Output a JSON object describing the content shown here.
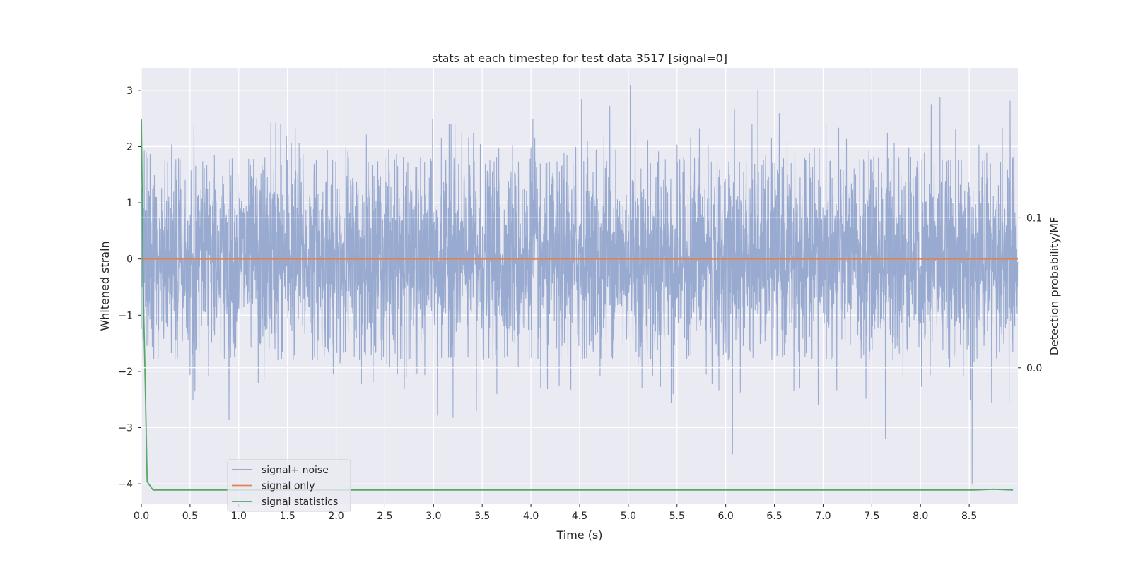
{
  "chart_data": {
    "type": "line",
    "title": "stats at each timestep for test data 3517 [signal=0]",
    "xlabel": "Time (s)",
    "ylabel": "Whitened strain",
    "ylabel_right": "Detection probability/MF",
    "xlim": [
      0.0,
      9.0
    ],
    "ylim": [
      -4.35,
      3.4
    ],
    "ylim_right": [
      -0.0905,
      0.2
    ],
    "x_ticks": [
      "0.0",
      "0.5",
      "1.0",
      "1.5",
      "2.0",
      "2.5",
      "3.0",
      "3.5",
      "4.0",
      "4.5",
      "5.0",
      "5.5",
      "6.0",
      "6.5",
      "7.0",
      "7.5",
      "8.0",
      "8.5"
    ],
    "y_ticks": [
      "3",
      "2",
      "1",
      "0",
      "−1",
      "−2",
      "−3",
      "−4"
    ],
    "y_ticks_right": [
      "0.1",
      "0.0"
    ],
    "grid": true,
    "legend_position": "lower-left",
    "colors": {
      "signal_noise": "#8da0cb",
      "signal_only": "#dd8452",
      "signal_statistics": "#55a868",
      "plot_bg": "#eaeaf2",
      "grid": "#ffffff"
    },
    "series": [
      {
        "name": "signal+ noise",
        "axis": "left",
        "kind": "noise",
        "sample_rate": 500,
        "duration": 9.0,
        "std": 0.82,
        "peaks": [
          [
            0.03,
            1.92
          ],
          [
            0.05,
            1.89
          ],
          [
            0.07,
            -1.55
          ],
          [
            0.09,
            1.86
          ],
          [
            0.27,
            1.73
          ],
          [
            0.31,
            2.03
          ],
          [
            0.37,
            -1.74
          ],
          [
            0.45,
            1.4
          ],
          [
            0.5,
            -2.06
          ],
          [
            0.51,
            1.57
          ],
          [
            0.53,
            -2.51
          ],
          [
            0.54,
            2.37
          ],
          [
            0.55,
            -2.35
          ],
          [
            0.63,
            1.73
          ],
          [
            0.69,
            -2.08
          ],
          [
            0.75,
            1.85
          ],
          [
            0.89,
            -1.59
          ],
          [
            0.9,
            -2.85
          ],
          [
            0.92,
            1.48
          ],
          [
            0.95,
            -1.5
          ],
          [
            1.2,
            -2.2
          ],
          [
            1.24,
            1.66
          ],
          [
            1.26,
            -2.13
          ],
          [
            1.33,
            2.42
          ],
          [
            1.38,
            2.42
          ],
          [
            1.43,
            2.4
          ],
          [
            1.49,
            2.19
          ],
          [
            1.54,
            2.06
          ],
          [
            1.58,
            2.33
          ],
          [
            1.62,
            2.06
          ],
          [
            1.66,
            1.86
          ],
          [
            1.91,
            1.93
          ],
          [
            1.92,
            -1.66
          ],
          [
            1.97,
            -2.05
          ],
          [
            2.04,
            -1.85
          ],
          [
            2.1,
            1.99
          ],
          [
            2.12,
            1.91
          ],
          [
            2.21,
            1.37
          ],
          [
            2.26,
            -2.22
          ],
          [
            2.29,
            -1.66
          ],
          [
            2.31,
            2.21
          ],
          [
            2.37,
            1.67
          ],
          [
            2.38,
            -2.19
          ],
          [
            2.44,
            1.29
          ],
          [
            2.52,
            -1.86
          ],
          [
            2.54,
            1.94
          ],
          [
            2.55,
            -1.93
          ],
          [
            2.62,
            1.86
          ],
          [
            2.63,
            -2.05
          ],
          [
            2.69,
            1.81
          ],
          [
            2.7,
            -2.31
          ],
          [
            2.72,
            -2.1
          ],
          [
            2.82,
            -2.1
          ],
          [
            2.83,
            -2.03
          ],
          [
            2.91,
            -2.06
          ],
          [
            2.99,
            2.49
          ],
          [
            3.04,
            -2.78
          ],
          [
            3.08,
            2.15
          ],
          [
            3.16,
            2.4
          ],
          [
            3.18,
            2.39
          ],
          [
            3.2,
            -2.82
          ],
          [
            3.22,
            2.4
          ],
          [
            3.29,
            2.25
          ],
          [
            3.36,
            2.16
          ],
          [
            3.41,
            2.24
          ],
          [
            3.44,
            -2.7
          ],
          [
            3.48,
            2.04
          ],
          [
            3.58,
            1.43
          ],
          [
            3.65,
            -2.4
          ],
          [
            3.67,
            1.96
          ],
          [
            3.73,
            -1.75
          ],
          [
            3.77,
            1.38
          ],
          [
            3.81,
            2.01
          ],
          [
            3.87,
            -1.91
          ],
          [
            4.0,
            1.98
          ],
          [
            4.02,
            2.49
          ],
          [
            4.04,
            2.15
          ],
          [
            4.1,
            -2.29
          ],
          [
            4.17,
            -2.31
          ],
          [
            4.29,
            -2.25
          ],
          [
            4.34,
            1.88
          ],
          [
            4.37,
            1.85
          ],
          [
            4.41,
            -2.32
          ],
          [
            4.46,
            1.99
          ],
          [
            4.52,
            2.84
          ],
          [
            4.58,
            2.09
          ],
          [
            4.67,
            1.94
          ],
          [
            4.71,
            -2.08
          ],
          [
            4.75,
            2.21
          ],
          [
            4.81,
            2.72
          ],
          [
            4.87,
            1.94
          ],
          [
            5.02,
            3.08
          ],
          [
            5.07,
            2.32
          ],
          [
            5.1,
            -1.87
          ],
          [
            5.14,
            -2.29
          ],
          [
            5.2,
            2.11
          ],
          [
            5.25,
            -2.07
          ],
          [
            5.31,
            1.91
          ],
          [
            5.33,
            -2.27
          ],
          [
            5.38,
            1.77
          ],
          [
            5.44,
            -2.56
          ],
          [
            5.46,
            -2.4
          ],
          [
            5.5,
            2.03
          ],
          [
            5.56,
            1.54
          ],
          [
            5.64,
            2.16
          ],
          [
            5.68,
            1.79
          ],
          [
            5.73,
            2.32
          ],
          [
            5.8,
            -2.05
          ],
          [
            5.82,
            2.01
          ],
          [
            5.86,
            -2.22
          ],
          [
            5.93,
            -2.33
          ],
          [
            6.07,
            -3.47
          ],
          [
            6.09,
            2.65
          ],
          [
            6.15,
            -2.37
          ],
          [
            6.21,
            1.72
          ],
          [
            6.27,
            2.39
          ],
          [
            6.33,
            3.01
          ],
          [
            6.41,
            1.85
          ],
          [
            6.47,
            2.14
          ],
          [
            6.55,
            2.59
          ],
          [
            6.63,
            2.11
          ],
          [
            6.7,
            -2.34
          ],
          [
            6.71,
            1.89
          ],
          [
            6.76,
            -2.3
          ],
          [
            6.82,
            1.76
          ],
          [
            6.86,
            1.88
          ],
          [
            6.91,
            1.97
          ],
          [
            6.95,
            -2.59
          ],
          [
            6.96,
            1.98
          ],
          [
            7.03,
            2.39
          ],
          [
            7.07,
            1.74
          ],
          [
            7.14,
            -2.33
          ],
          [
            7.16,
            2.33
          ],
          [
            7.24,
            2.13
          ],
          [
            7.29,
            1.34
          ],
          [
            7.39,
            -1.76
          ],
          [
            7.44,
            -2.48
          ],
          [
            7.47,
            1.92
          ],
          [
            7.52,
            1.82
          ],
          [
            7.6,
            1.53
          ],
          [
            7.64,
            -3.2
          ],
          [
            7.66,
            2.24
          ],
          [
            7.73,
            2.06
          ],
          [
            7.8,
            1.49
          ],
          [
            7.82,
            -2.09
          ],
          [
            7.88,
            1.98
          ],
          [
            7.9,
            1.81
          ],
          [
            7.96,
            1.62
          ],
          [
            8.01,
            -2.27
          ],
          [
            8.04,
            1.89
          ],
          [
            8.1,
            -2.06
          ],
          [
            8.11,
            2.75
          ],
          [
            8.14,
            1.69
          ],
          [
            8.2,
            2.87
          ],
          [
            8.3,
            -1.93
          ],
          [
            8.36,
            2.3
          ],
          [
            8.44,
            -2.09
          ],
          [
            8.51,
            -2.5
          ],
          [
            8.53,
            -4.0
          ],
          [
            8.55,
            -1.82
          ],
          [
            8.6,
            2.03
          ],
          [
            8.68,
            1.89
          ],
          [
            8.73,
            -2.55
          ],
          [
            8.78,
            -1.73
          ],
          [
            8.84,
            2.33
          ],
          [
            8.91,
            -2.56
          ],
          [
            8.92,
            2.81
          ],
          [
            8.94,
            -1.46
          ],
          [
            8.96,
            1.99
          ]
        ]
      },
      {
        "name": "signal only",
        "axis": "left",
        "x": [
          0.0,
          9.0
        ],
        "y": [
          0.0,
          0.0
        ]
      },
      {
        "name": "signal statistics",
        "axis": "right",
        "x": [
          0.0,
          0.01,
          0.02,
          0.04,
          0.06,
          0.12,
          0.5,
          1.0,
          2.0,
          3.0,
          4.0,
          5.0,
          6.0,
          7.0,
          8.0,
          8.5,
          8.55,
          8.75,
          8.95
        ],
        "y": [
          0.166,
          0.11,
          0.05,
          -0.01,
          -0.076,
          -0.0815,
          -0.0815,
          -0.0815,
          -0.0815,
          -0.0815,
          -0.0815,
          -0.0815,
          -0.0815,
          -0.0815,
          -0.0815,
          -0.0815,
          -0.0815,
          -0.081,
          -0.0815
        ]
      }
    ]
  }
}
